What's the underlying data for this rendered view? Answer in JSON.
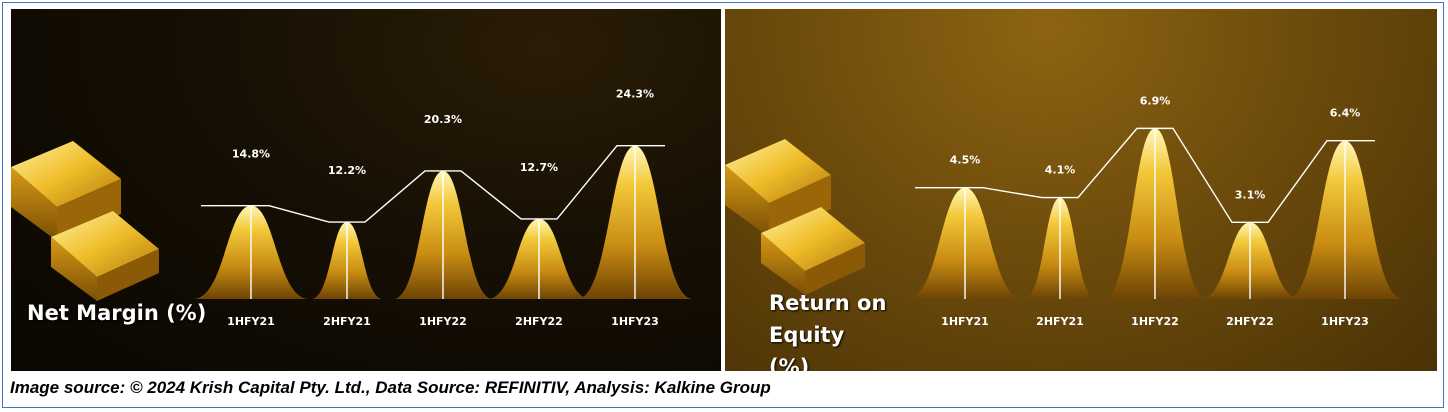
{
  "source_note": "Image source: © 2024 Krish Capital Pty. Ltd., Data Source: REFINITIV, Analysis: Kalkine Group",
  "colors": {
    "gold_light": "#fff3a0",
    "gold_mid": "#e8b422",
    "gold_dark": "#7a4e05",
    "outline": "#ffffff"
  },
  "chart_data": [
    {
      "type": "area",
      "title": "Net Margin (%)",
      "categories": [
        "1HFY21",
        "2HFY21",
        "1HFY22",
        "2HFY22",
        "1HFY23"
      ],
      "values": [
        14.8,
        12.2,
        20.3,
        12.7,
        24.3
      ],
      "value_labels": [
        "14.8%",
        "12.2%",
        "20.3%",
        "12.7%",
        "24.3%"
      ],
      "unit": "%",
      "ylim": [
        0,
        26
      ],
      "grid": false,
      "legend": "none"
    },
    {
      "type": "area",
      "title": "Return on Equity (%)",
      "title_lines": [
        "Return on",
        "Equity (%)"
      ],
      "categories": [
        "1HFY21",
        "2HFY21",
        "1HFY22",
        "2HFY22",
        "1HFY23"
      ],
      "values": [
        4.5,
        4.1,
        6.9,
        3.1,
        6.4
      ],
      "value_labels": [
        "4.5%",
        "4.1%",
        "6.9%",
        "3.1%",
        "6.4%"
      ],
      "unit": "%",
      "ylim": [
        0,
        7.4
      ],
      "grid": false,
      "legend": "none"
    }
  ]
}
